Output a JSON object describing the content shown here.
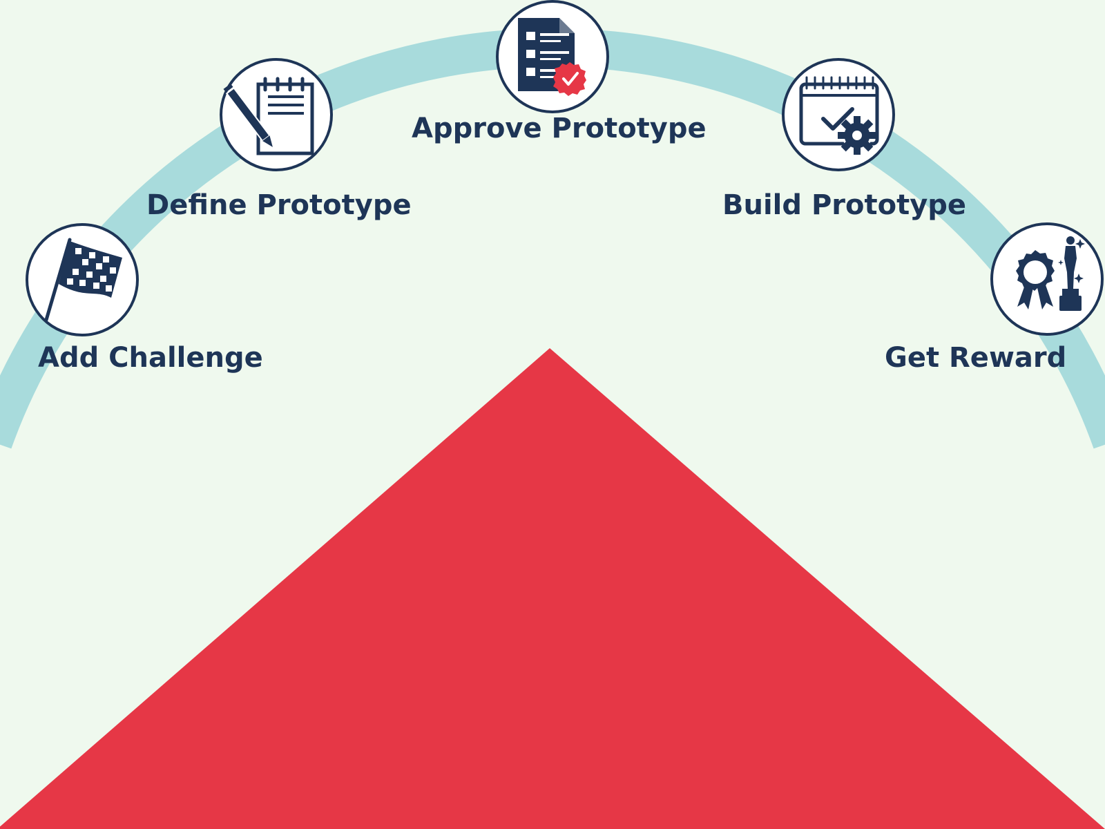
{
  "colors": {
    "background": "#eff9ee",
    "arc": "#a8dbdc",
    "navy": "#1e3557",
    "accent_red": "#e63746",
    "circle_fill": "#ffffff"
  },
  "steps": [
    {
      "id": "add-challenge",
      "label": "Add Challenge",
      "icon": "checkered-flag-icon"
    },
    {
      "id": "define-prototype",
      "label": "Define Prototype",
      "icon": "notepad-pencil-icon"
    },
    {
      "id": "approve-prototype",
      "label": "Approve Prototype",
      "icon": "approved-document-icon"
    },
    {
      "id": "build-prototype",
      "label": "Build Prototype",
      "icon": "calendar-gear-icon"
    },
    {
      "id": "get-reward",
      "label": "Get Reward",
      "icon": "award-trophy-icon"
    }
  ]
}
